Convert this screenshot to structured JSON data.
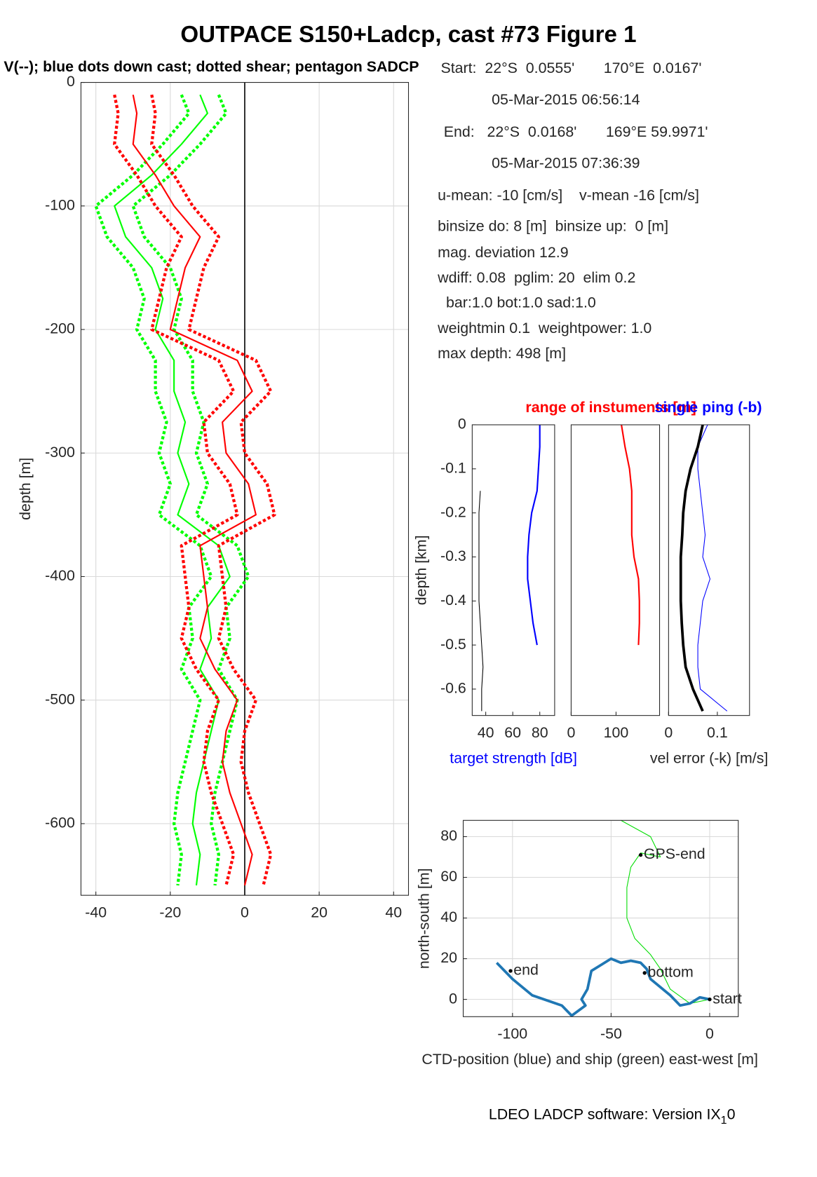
{
  "title": "OUTPACE S150+Ladcp, cast #73  Figure 1",
  "subtitle": "V(--); blue dots down cast; dotted shear; pentagon SADCP",
  "info": [
    "Start:  22°S  0.0555'       170°E  0.0167'",
    "05-Mar-2015 06:56:14",
    "End:   22°S  0.0168'       169°E 59.9971'",
    "05-Mar-2015 07:36:39",
    "u-mean: -10 [cm/s]    v-mean -16 [cm/s]",
    "binsize do: 8 [m]  binsize up:  0 [m]",
    "mag. deviation 12.9",
    "wdiff: 0.08  pglim: 20  elim 0.2",
    "  bar:1.0 bot:1.0 sad:1.0",
    "weightmin 0.1  weightpower: 1.0",
    "max depth: 498 [m]"
  ],
  "footer": {
    "text": "LDEO LADCP software: Version IX",
    "sub": "1",
    "tail": "0"
  },
  "chart_data": [
    {
      "type": "profile",
      "ylabel": "depth [m]",
      "xlim": [
        -44,
        44
      ],
      "ylim": [
        -658,
        0
      ],
      "xticks": [
        -40,
        -20,
        0,
        20,
        40
      ],
      "yticks": [
        0,
        -100,
        -200,
        -300,
        -400,
        -500,
        -600
      ],
      "grid": true,
      "zeroline": true,
      "depth": [
        -10,
        -25,
        -50,
        -75,
        -100,
        -125,
        -150,
        -175,
        -200,
        -225,
        -250,
        -275,
        -300,
        -325,
        -350,
        -375,
        -400,
        -425,
        -450,
        -475,
        -500,
        -525,
        -550,
        -575,
        -600,
        -625,
        -650
      ],
      "series": [
        {
          "color": "#00ff00",
          "linestyle": "dotted",
          "values": [
            -17,
            -15,
            -22,
            -30,
            -40,
            -37,
            -30,
            -27,
            -29,
            -24,
            -24,
            -21,
            -23,
            -20,
            -23,
            -12,
            -9,
            -15,
            -14,
            -17,
            -12,
            -14,
            -16,
            -18,
            -19,
            -17,
            -18
          ]
        },
        {
          "color": "#00ff00",
          "linestyle": "dotted",
          "values": [
            -7,
            -5,
            -12,
            -20,
            -30,
            -27,
            -20,
            -17,
            -19,
            -14,
            -14,
            -11,
            -13,
            -10,
            -13,
            -2,
            1,
            -5,
            -4,
            -7,
            -2,
            -4,
            -6,
            -8,
            -9,
            -7,
            -8
          ]
        },
        {
          "color": "#00ff00",
          "linestyle": "solid",
          "values": [
            -12,
            -10,
            -17,
            -25,
            -35,
            -32,
            -25,
            -22,
            -24,
            -19,
            -19,
            -16,
            -18,
            -15,
            -18,
            -7,
            -4,
            -10,
            -9,
            -12,
            -7,
            -9,
            -11,
            -13,
            -14,
            -12,
            -13
          ]
        },
        {
          "color": "#ff0000",
          "linestyle": "dotted",
          "values": [
            -35,
            -34,
            -35,
            -29,
            -24,
            -17,
            -21,
            -23,
            -25,
            -7,
            -3,
            -11,
            -10,
            -4,
            -2,
            -17,
            -16,
            -15,
            -17,
            -13,
            -7,
            -10,
            -11,
            -9,
            -6,
            -3,
            -5
          ]
        },
        {
          "color": "#ff0000",
          "linestyle": "dotted",
          "values": [
            -25,
            -24,
            -25,
            -19,
            -14,
            -7,
            -11,
            -13,
            -15,
            3,
            7,
            -1,
            0,
            6,
            8,
            -7,
            -6,
            -5,
            -7,
            -3,
            3,
            0,
            -1,
            1,
            4,
            7,
            5
          ]
        },
        {
          "color": "#ff0000",
          "linestyle": "solid",
          "values": [
            -30,
            -29,
            -30,
            -24,
            -19,
            -12,
            -16,
            -18,
            -20,
            -2,
            2,
            -6,
            -5,
            1,
            3,
            -12,
            -11,
            -10,
            -12,
            -8,
            -2,
            -5,
            -6,
            -4,
            -1,
            2,
            0
          ]
        }
      ]
    },
    {
      "type": "profile",
      "ylabel": "depth [km]",
      "xlabel": "target strength [dB]",
      "xlabel_color": "#0000ff",
      "xlim": [
        30,
        91
      ],
      "ylim": [
        -0.66,
        0
      ],
      "xticks": [
        40,
        60,
        80
      ],
      "yticks": [
        0,
        -0.1,
        -0.2,
        -0.3,
        -0.4,
        -0.5,
        -0.6
      ],
      "grid": false,
      "depth": [
        0,
        -0.05,
        -0.1,
        -0.15,
        -0.2,
        -0.25,
        -0.3,
        -0.35,
        -0.4,
        -0.45,
        -0.5,
        -0.55,
        -0.6,
        -0.65
      ],
      "series": [
        {
          "color": "#000000",
          "linestyle": "thin",
          "values": [
            null,
            null,
            null,
            36,
            35,
            35,
            35,
            35,
            35,
            36,
            37,
            38,
            37,
            37
          ]
        },
        {
          "color": "#0000ff",
          "linestyle": "solid",
          "values": [
            80,
            80,
            79,
            78,
            74,
            72,
            71,
            71,
            73,
            75,
            78,
            null,
            null,
            null
          ]
        }
      ]
    },
    {
      "type": "profile",
      "title": "range of instuments [m]",
      "title_color": "#ff0000",
      "xlim": [
        0,
        197
      ],
      "ylim": [
        -0.66,
        0
      ],
      "xticks": [
        0,
        100
      ],
      "grid": false,
      "depth": [
        0,
        -0.05,
        -0.1,
        -0.15,
        -0.2,
        -0.25,
        -0.3,
        -0.35,
        -0.4,
        -0.45,
        -0.5,
        -0.55,
        -0.6,
        -0.65
      ],
      "series": [
        {
          "color": "#ff0000",
          "linestyle": "solid",
          "values": [
            112,
            120,
            130,
            135,
            135,
            135,
            140,
            150,
            152,
            152,
            150,
            null,
            null,
            null
          ]
        }
      ]
    },
    {
      "type": "profile",
      "title": "single ping (-b)",
      "title_color": "#0000ff",
      "xlabel": "vel error (-k) [m/s]",
      "xlim": [
        0,
        0.166
      ],
      "ylim": [
        -0.66,
        0
      ],
      "xticks": [
        0,
        0.1
      ],
      "grid": false,
      "depth": [
        0,
        -0.05,
        -0.1,
        -0.15,
        -0.2,
        -0.25,
        -0.3,
        -0.35,
        -0.4,
        -0.45,
        -0.5,
        -0.55,
        -0.6,
        -0.65
      ],
      "series": [
        {
          "color": "#0000ff",
          "linestyle": "thin",
          "values": [
            0.08,
            0.06,
            0.06,
            0.065,
            0.07,
            0.075,
            0.07,
            0.085,
            0.07,
            0.065,
            0.06,
            0.06,
            0.065,
            0.12
          ]
        },
        {
          "color": "#000000",
          "linestyle": "thick",
          "values": [
            0.07,
            0.06,
            0.045,
            0.035,
            0.03,
            0.028,
            0.025,
            0.025,
            0.025,
            0.027,
            0.03,
            0.035,
            0.05,
            0.07
          ]
        }
      ]
    },
    {
      "type": "line",
      "ylabel": "north-south [m]",
      "xlabel": "CTD-position (blue) and ship (green) east-west [m]",
      "xlim": [
        -125,
        14.5
      ],
      "ylim": [
        -8.5,
        88
      ],
      "xticks": [
        -100,
        -50,
        0
      ],
      "yticks": [
        0,
        20,
        40,
        60,
        80
      ],
      "grid": true,
      "series": [
        {
          "color": "#00dd00",
          "linestyle": "thin",
          "x": [
            0,
            -10,
            -20,
            -25,
            -30,
            -38,
            -42,
            -42,
            -40,
            -35,
            -25,
            -30,
            -45
          ],
          "values": [
            0,
            -2,
            5,
            15,
            22,
            30,
            40,
            55,
            65,
            72,
            70,
            80,
            88
          ]
        },
        {
          "color": "#1f77b4",
          "linestyle": "thick",
          "x": [
            0,
            -5,
            -10,
            -15,
            -20,
            -25,
            -30,
            -32,
            -35,
            -40,
            -45,
            -50,
            -55,
            -60,
            -62,
            -65,
            -63,
            -70,
            -75,
            -90,
            -100,
            -108
          ],
          "values": [
            0,
            1,
            -2,
            -3,
            2,
            6,
            10,
            15,
            18,
            19,
            18,
            20,
            17,
            14,
            5,
            0,
            -3,
            -8,
            -3,
            2,
            10,
            18
          ]
        }
      ],
      "annotations": [
        {
          "text": "start",
          "x": 0,
          "y": 0
        },
        {
          "text": "bottom",
          "x": -33,
          "y": 13
        },
        {
          "text": "end",
          "x": -101,
          "y": 14
        },
        {
          "text": "GPS-end",
          "x": -35,
          "y": 71
        }
      ]
    }
  ]
}
